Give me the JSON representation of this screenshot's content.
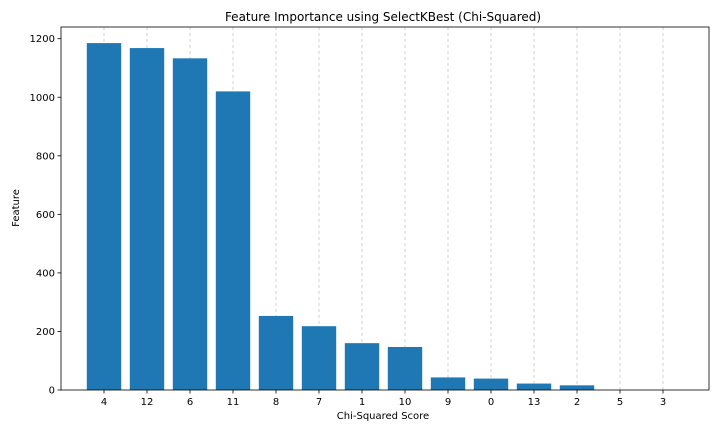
{
  "chart_data": {
    "type": "bar",
    "title": "Feature Importance using SelectKBest (Chi-Squared)",
    "xlabel": "Chi-Squared Score",
    "ylabel": "Feature",
    "categories": [
      "4",
      "12",
      "6",
      "11",
      "8",
      "7",
      "1",
      "10",
      "9",
      "0",
      "13",
      "2",
      "5",
      "3"
    ],
    "values": [
      1185,
      1168,
      1133,
      1020,
      253,
      218,
      160,
      147,
      43,
      39,
      22,
      16,
      0,
      0
    ],
    "ylim": [
      0,
      1240
    ],
    "yticks": [
      0,
      200,
      400,
      600,
      800,
      1000,
      1200
    ],
    "grid": "x-dashed",
    "bar_color": "#1f77b4"
  }
}
